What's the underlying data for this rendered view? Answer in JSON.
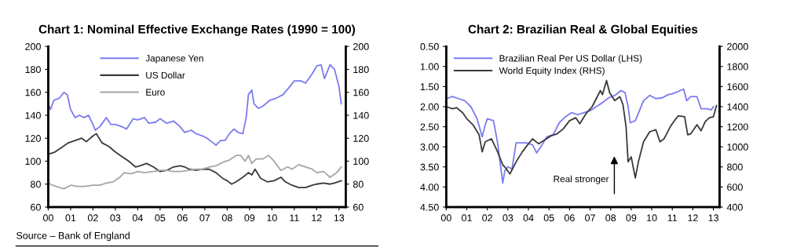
{
  "chart_data": [
    {
      "type": "line",
      "title": "Chart 1: Nominal Effective Exchange Rates (1990 = 100)",
      "legend": "top",
      "grid": false,
      "xlim": [
        2000,
        2013.3
      ],
      "xticks": [
        {
          "value": 2000,
          "label": "00"
        },
        {
          "value": 2001,
          "label": "01"
        },
        {
          "value": 2002,
          "label": "02"
        },
        {
          "value": 2003,
          "label": "03"
        },
        {
          "value": 2004,
          "label": "04"
        },
        {
          "value": 2005,
          "label": "05"
        },
        {
          "value": 2006,
          "label": "06"
        },
        {
          "value": 2007,
          "label": "07"
        },
        {
          "value": 2008,
          "label": "08"
        },
        {
          "value": 2009,
          "label": "09"
        },
        {
          "value": 2010,
          "label": "10"
        },
        {
          "value": 2011,
          "label": "11"
        },
        {
          "value": 2012,
          "label": "12"
        },
        {
          "value": 2013,
          "label": "13"
        }
      ],
      "ylim": [
        60,
        200
      ],
      "yticks": [
        60,
        80,
        100,
        120,
        140,
        160,
        180,
        200
      ],
      "y2lim": [
        60,
        200
      ],
      "y2ticks": [
        60,
        80,
        100,
        120,
        140,
        160,
        180,
        200
      ],
      "annotations": [
        "Source – Bank of England"
      ],
      "series": [
        {
          "name": "Japanese Yen",
          "color": "#7b7bf0",
          "x": [
            2000.0,
            2000.1,
            2000.25,
            2000.5,
            2000.7,
            2000.85,
            2001.0,
            2001.2,
            2001.4,
            2001.6,
            2001.8,
            2002.0,
            2002.1,
            2002.3,
            2002.6,
            2002.8,
            2003.0,
            2003.3,
            2003.5,
            2003.8,
            2004.0,
            2004.3,
            2004.5,
            2004.8,
            2005.0,
            2005.3,
            2005.6,
            2005.9,
            2006.1,
            2006.4,
            2006.6,
            2006.9,
            2007.1,
            2007.3,
            2007.5,
            2007.7,
            2007.9,
            2008.1,
            2008.3,
            2008.5,
            2008.7,
            2008.85,
            2008.95,
            2009.1,
            2009.2,
            2009.4,
            2009.6,
            2009.9,
            2010.2,
            2010.5,
            2010.8,
            2011.0,
            2011.3,
            2011.5,
            2011.8,
            2012.0,
            2012.2,
            2012.35,
            2012.6,
            2012.8,
            2013.0,
            2013.1
          ],
          "values": [
            150,
            145,
            153,
            155,
            160,
            158,
            145,
            138,
            140,
            138,
            140,
            132,
            127,
            130,
            138,
            132,
            132,
            130,
            128,
            137,
            136,
            138,
            133,
            134,
            137,
            133,
            135,
            130,
            125,
            127,
            124,
            122,
            120,
            117,
            114,
            118,
            118,
            124,
            128,
            125,
            124,
            138,
            158,
            162,
            150,
            146,
            148,
            153,
            155,
            158,
            165,
            170,
            170,
            168,
            176,
            183,
            184,
            172,
            184,
            180,
            165,
            150
          ]
        },
        {
          "name": "US Dollar",
          "color": "#3a3a3a",
          "x": [
            2000.0,
            2000.3,
            2000.6,
            2000.9,
            2001.2,
            2001.5,
            2001.7,
            2002.0,
            2002.15,
            2002.4,
            2002.7,
            2003.0,
            2003.3,
            2003.6,
            2003.9,
            2004.1,
            2004.4,
            2004.7,
            2005.0,
            2005.3,
            2005.6,
            2005.9,
            2006.1,
            2006.3,
            2006.6,
            2006.9,
            2007.2,
            2007.5,
            2007.8,
            2008.0,
            2008.2,
            2008.4,
            2008.7,
            2008.95,
            2009.1,
            2009.25,
            2009.5,
            2009.8,
            2010.1,
            2010.4,
            2010.6,
            2010.9,
            2011.2,
            2011.5,
            2011.8,
            2012.0,
            2012.3,
            2012.6,
            2012.8,
            2013.1
          ],
          "values": [
            106,
            108,
            112,
            116,
            118,
            120,
            117,
            122,
            124,
            116,
            113,
            108,
            104,
            100,
            95,
            96,
            98,
            95,
            91,
            92,
            95,
            96,
            95,
            93,
            92,
            93,
            93,
            90,
            85,
            83,
            80,
            82,
            86,
            90,
            88,
            93,
            85,
            82,
            83,
            86,
            82,
            79,
            77,
            77,
            79,
            80,
            81,
            80,
            81,
            83
          ]
        },
        {
          "name": "Euro",
          "color": "#a6a6a6",
          "x": [
            2000.0,
            2000.2,
            2000.5,
            2000.7,
            2001.0,
            2001.3,
            2001.6,
            2002.0,
            2002.3,
            2002.6,
            2002.9,
            2003.2,
            2003.4,
            2003.7,
            2004.0,
            2004.3,
            2004.7,
            2005.0,
            2005.3,
            2005.6,
            2005.9,
            2006.3,
            2006.6,
            2006.9,
            2007.2,
            2007.5,
            2007.8,
            2008.1,
            2008.4,
            2008.6,
            2008.8,
            2008.95,
            2009.1,
            2009.3,
            2009.6,
            2009.85,
            2010.1,
            2010.4,
            2010.7,
            2010.9,
            2011.2,
            2011.5,
            2011.8,
            2012.0,
            2012.3,
            2012.6,
            2012.9,
            2013.1
          ],
          "values": [
            81,
            79,
            77,
            76,
            79,
            78,
            78,
            79,
            79,
            81,
            82,
            86,
            90,
            89,
            91,
            90,
            91,
            92,
            92,
            91,
            91,
            92,
            93,
            93,
            95,
            96,
            99,
            101,
            105,
            105,
            100,
            105,
            98,
            102,
            102,
            105,
            100,
            92,
            95,
            93,
            97,
            95,
            93,
            90,
            91,
            86,
            90,
            95
          ]
        }
      ]
    },
    {
      "type": "line",
      "title": "Chart 2: Brazilian Real & Global Equities",
      "legend": "top left",
      "grid": false,
      "xlim": [
        2000,
        2013.3
      ],
      "xticks": [
        {
          "value": 2000,
          "label": "00"
        },
        {
          "value": 2001,
          "label": "01"
        },
        {
          "value": 2002,
          "label": "02"
        },
        {
          "value": 2003,
          "label": "03"
        },
        {
          "value": 2004,
          "label": "04"
        },
        {
          "value": 2005,
          "label": "05"
        },
        {
          "value": 2006,
          "label": "06"
        },
        {
          "value": 2007,
          "label": "07"
        },
        {
          "value": 2008,
          "label": "08"
        },
        {
          "value": 2009,
          "label": "09"
        },
        {
          "value": 2010,
          "label": "10"
        },
        {
          "value": 2011,
          "label": "11"
        },
        {
          "value": 2012,
          "label": "12"
        },
        {
          "value": 2013,
          "label": "13"
        }
      ],
      "ylim": [
        4.5,
        0.5
      ],
      "yticks": [
        {
          "value": 0.5,
          "label": "0.50"
        },
        {
          "value": 1.0,
          "label": "1.00"
        },
        {
          "value": 1.5,
          "label": "1.50"
        },
        {
          "value": 2.0,
          "label": "2.00"
        },
        {
          "value": 2.5,
          "label": "2.50"
        },
        {
          "value": 3.0,
          "label": "3.00"
        },
        {
          "value": 3.5,
          "label": "3.50"
        },
        {
          "value": 4.0,
          "label": "4.00"
        },
        {
          "value": 4.5,
          "label": "4.50"
        }
      ],
      "y2lim": [
        400,
        2000
      ],
      "y2ticks": [
        400,
        600,
        800,
        1000,
        1200,
        1400,
        1600,
        1800,
        2000
      ],
      "annotations": [
        "Real stronger"
      ],
      "series": [
        {
          "name": "Brazilian Real Per US Dollar (LHS)",
          "color": "#7b7bf0",
          "x": [
            2000.0,
            2000.3,
            2000.6,
            2000.9,
            2001.2,
            2001.5,
            2001.75,
            2001.9,
            2002.0,
            2002.3,
            2002.5,
            2002.75,
            2002.85,
            2003.0,
            2003.2,
            2003.4,
            2003.6,
            2003.9,
            2004.2,
            2004.4,
            2004.6,
            2004.9,
            2005.2,
            2005.5,
            2005.8,
            2006.1,
            2006.4,
            2006.7,
            2007.0,
            2007.3,
            2007.6,
            2007.9,
            2008.2,
            2008.5,
            2008.7,
            2008.85,
            2008.95,
            2009.2,
            2009.4,
            2009.6,
            2009.9,
            2010.2,
            2010.5,
            2010.8,
            2011.0,
            2011.3,
            2011.55,
            2011.7,
            2011.9,
            2012.2,
            2012.4,
            2012.7,
            2012.9,
            2013.0
          ],
          "values": [
            1.8,
            1.75,
            1.8,
            1.85,
            2.0,
            2.3,
            2.75,
            2.45,
            2.3,
            2.35,
            2.9,
            3.9,
            3.6,
            3.5,
            3.55,
            2.9,
            2.9,
            2.9,
            2.95,
            3.15,
            3.0,
            2.75,
            2.7,
            2.4,
            2.25,
            2.15,
            2.2,
            2.15,
            2.1,
            2.0,
            1.9,
            1.78,
            1.72,
            1.6,
            1.65,
            2.0,
            2.4,
            2.35,
            2.1,
            1.85,
            1.72,
            1.8,
            1.78,
            1.7,
            1.68,
            1.62,
            1.56,
            1.85,
            1.75,
            1.75,
            2.05,
            2.05,
            2.08,
            2.0
          ]
        },
        {
          "name": "World Equity Index (RHS)",
          "color": "#3a3a3a",
          "axis": "y2",
          "x": [
            2000.0,
            2000.3,
            2000.5,
            2000.8,
            2001.0,
            2001.3,
            2001.6,
            2001.75,
            2001.9,
            2002.2,
            2002.5,
            2002.75,
            2002.85,
            2003.1,
            2003.4,
            2003.7,
            2004.0,
            2004.2,
            2004.5,
            2004.8,
            2005.1,
            2005.4,
            2005.7,
            2006.0,
            2006.3,
            2006.5,
            2006.8,
            2007.1,
            2007.3,
            2007.5,
            2007.6,
            2007.8,
            2007.95,
            2008.2,
            2008.45,
            2008.6,
            2008.75,
            2008.85,
            2009.0,
            2009.2,
            2009.35,
            2009.6,
            2009.9,
            2010.2,
            2010.4,
            2010.6,
            2010.9,
            2011.1,
            2011.3,
            2011.6,
            2011.75,
            2011.9,
            2012.2,
            2012.4,
            2012.6,
            2012.8,
            2013.0,
            2013.15
          ],
          "values": [
            1400,
            1380,
            1390,
            1340,
            1280,
            1220,
            1120,
            950,
            1050,
            1080,
            950,
            820,
            800,
            730,
            850,
            950,
            1030,
            1080,
            1030,
            1070,
            1110,
            1130,
            1180,
            1260,
            1290,
            1230,
            1330,
            1400,
            1480,
            1560,
            1520,
            1660,
            1540,
            1460,
            1500,
            1420,
            1200,
            850,
            900,
            690,
            850,
            1050,
            1150,
            1170,
            1050,
            1080,
            1200,
            1260,
            1310,
            1300,
            1120,
            1130,
            1220,
            1160,
            1250,
            1290,
            1300,
            1410
          ]
        }
      ]
    }
  ]
}
